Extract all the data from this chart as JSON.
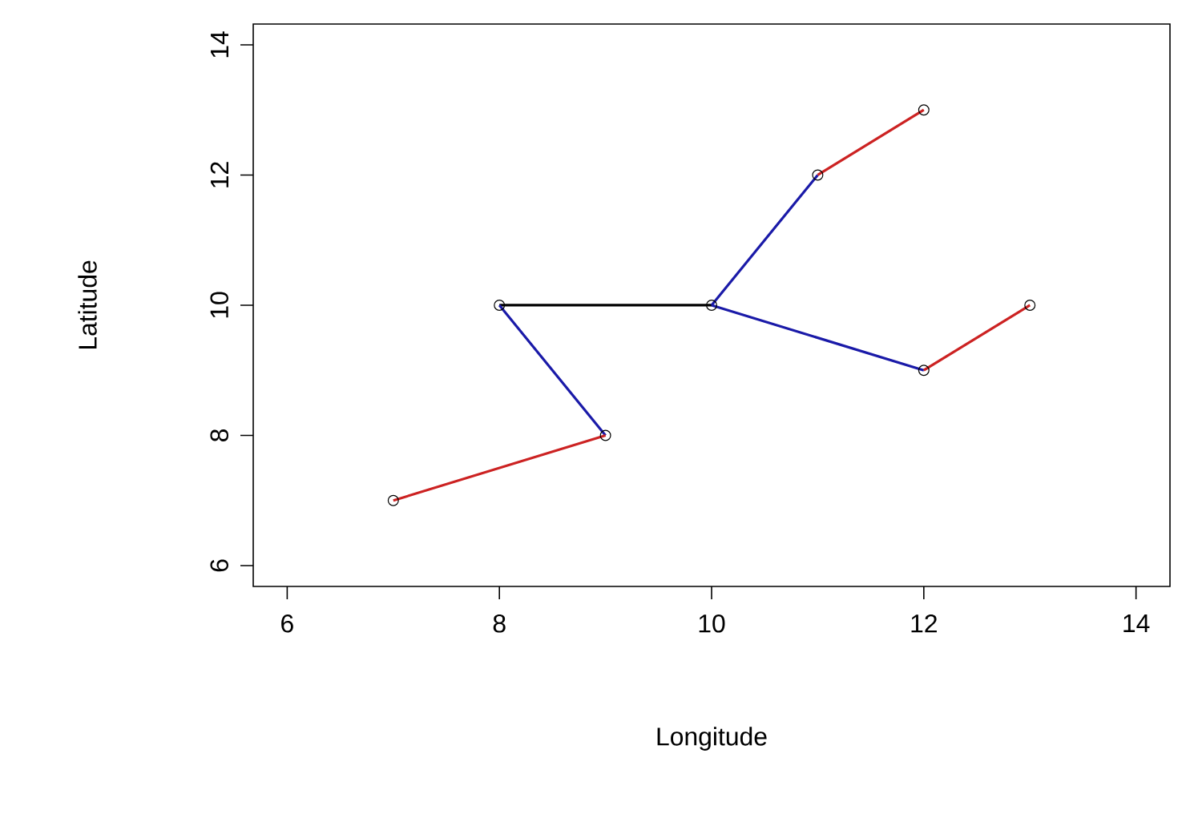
{
  "chart_data": {
    "type": "line",
    "xlabel": "Longitude",
    "ylabel": "Latitude",
    "xlim": [
      5.68,
      14.32
    ],
    "ylim": [
      5.68,
      14.32
    ],
    "xticks": [
      6,
      8,
      10,
      12,
      14
    ],
    "yticks": [
      6,
      8,
      10,
      12,
      14
    ],
    "grid": false,
    "series": [
      {
        "color": "#000000",
        "x": [
          8,
          10
        ],
        "values": [
          10,
          10
        ]
      },
      {
        "color": "#1a1aa8",
        "x": [
          8,
          9,
          null,
          10,
          11,
          null,
          10,
          12
        ],
        "values": [
          10,
          8,
          null,
          10,
          12,
          null,
          10,
          9
        ]
      },
      {
        "color": "#cc2222",
        "x": [
          7,
          9,
          null,
          11,
          12,
          null,
          12,
          13
        ],
        "values": [
          7,
          8,
          null,
          12,
          13,
          null,
          9,
          10
        ]
      },
      {
        "type": "scatter",
        "color": "#000000",
        "marker": "circle",
        "x": [
          7,
          9,
          8,
          10,
          11,
          12,
          12,
          13
        ],
        "values": [
          7,
          8,
          10,
          10,
          12,
          13,
          9,
          10
        ]
      }
    ]
  }
}
